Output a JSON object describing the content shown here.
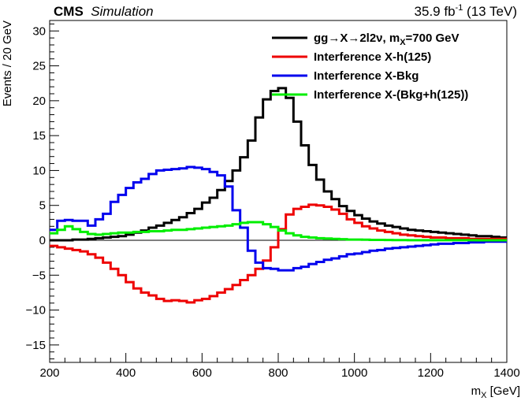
{
  "header": {
    "experiment": "CMS",
    "tag": "Simulation",
    "lumi": "35.9 fb",
    "lumi_exp": "-1",
    "energy": " (13 TeV)"
  },
  "chart_data": {
    "type": "line",
    "style": "step-histogram",
    "xlabel": "m",
    "xlabel_sub": "X",
    "xlabel_unit": " [GeV]",
    "ylabel": "Events / 20 GeV",
    "xlim": [
      200,
      1400
    ],
    "ylim": [
      -17.5,
      31.5
    ],
    "bin_width": 20,
    "x_ticks": [
      200,
      400,
      600,
      800,
      1000,
      1200,
      1400
    ],
    "y_ticks": [
      -15,
      -10,
      -5,
      0,
      5,
      10,
      15,
      20,
      25,
      30
    ],
    "grid": false,
    "legend_position": "top-right",
    "zero_line": true,
    "series": [
      {
        "name": "gg→X→2l2ν, m",
        "name_sub": "X",
        "name_tail": "=700 GeV",
        "color": "#000000",
        "values": [
          0,
          0,
          0,
          0.1,
          0.1,
          0.2,
          0.3,
          0.4,
          0.5,
          0.6,
          0.8,
          1.1,
          1.4,
          1.8,
          2.1,
          2.5,
          2.9,
          3.3,
          3.9,
          4.5,
          5.4,
          6.1,
          7.2,
          8.5,
          10.0,
          11.9,
          14.3,
          17.6,
          20.2,
          21.4,
          21.8,
          20.4,
          17.0,
          13.6,
          10.8,
          8.7,
          7.0,
          5.9,
          4.9,
          4.2,
          3.6,
          3.1,
          2.7,
          2.4,
          2.1,
          1.9,
          1.7,
          1.5,
          1.4,
          1.3,
          1.2,
          1.1,
          1.0,
          0.9,
          0.8,
          0.7,
          0.6,
          0.6,
          0.5,
          0.4
        ]
      },
      {
        "name": "Interference X-h(125)",
        "color": "#ee0000",
        "values": [
          -0.8,
          -1.0,
          -1.2,
          -1.4,
          -1.6,
          -2.0,
          -2.5,
          -3.2,
          -4.1,
          -5.0,
          -6.0,
          -6.9,
          -7.5,
          -7.9,
          -8.4,
          -8.7,
          -8.6,
          -8.7,
          -8.9,
          -8.6,
          -8.4,
          -8.0,
          -7.5,
          -7.0,
          -6.4,
          -5.7,
          -5.0,
          -4.1,
          -2.9,
          -1.0,
          1.6,
          3.7,
          4.5,
          4.8,
          5.1,
          5.0,
          4.8,
          4.4,
          3.8,
          3.0,
          2.5,
          2.0,
          1.7,
          1.4,
          1.2,
          1.0,
          0.8,
          0.7,
          0.6,
          0.5,
          0.4,
          0.4,
          0.3,
          0.3,
          0.3,
          0.2,
          0.2,
          0.2,
          0.2,
          0.2
        ]
      },
      {
        "name": "Interference X-Bkg",
        "color": "#0000ee",
        "values": [
          1.5,
          2.8,
          2.9,
          2.8,
          2.8,
          2.1,
          3.0,
          3.8,
          5.5,
          6.5,
          7.5,
          8.3,
          8.8,
          9.5,
          10.0,
          10.1,
          10.2,
          10.3,
          10.5,
          10.4,
          10.2,
          9.8,
          9.3,
          7.7,
          4.3,
          1.8,
          -1.5,
          -3.2,
          -4.0,
          -4.1,
          -4.3,
          -4.3,
          -4.0,
          -3.8,
          -3.4,
          -3.1,
          -2.8,
          -2.6,
          -2.3,
          -2.0,
          -1.9,
          -1.7,
          -1.5,
          -1.4,
          -1.2,
          -1.1,
          -1.0,
          -0.9,
          -0.8,
          -0.7,
          -0.6,
          -0.5,
          -0.5,
          -0.4,
          -0.4,
          -0.3,
          -0.3,
          -0.2,
          -0.2,
          -0.2
        ]
      },
      {
        "name": "Interference X-(Bkg+h(125))",
        "color": "#00ee00",
        "values": [
          1.0,
          1.5,
          2.0,
          1.6,
          1.2,
          0.9,
          0.8,
          0.9,
          1.0,
          1.1,
          1.1,
          1.2,
          1.2,
          1.3,
          1.3,
          1.4,
          1.5,
          1.5,
          1.6,
          1.7,
          1.8,
          1.9,
          2.0,
          2.1,
          2.3,
          2.5,
          2.6,
          2.6,
          2.3,
          1.9,
          1.4,
          1.0,
          0.7,
          0.5,
          0.4,
          0.3,
          0.25,
          0.2,
          0.15,
          0.1,
          0.1,
          0.08,
          0.06,
          0.05,
          0.04,
          0.03,
          0.03,
          0.02,
          0.02,
          0.02,
          0.02,
          0.01,
          0.01,
          0.01,
          0.01,
          0.01,
          0,
          0,
          0,
          0
        ]
      }
    ]
  }
}
